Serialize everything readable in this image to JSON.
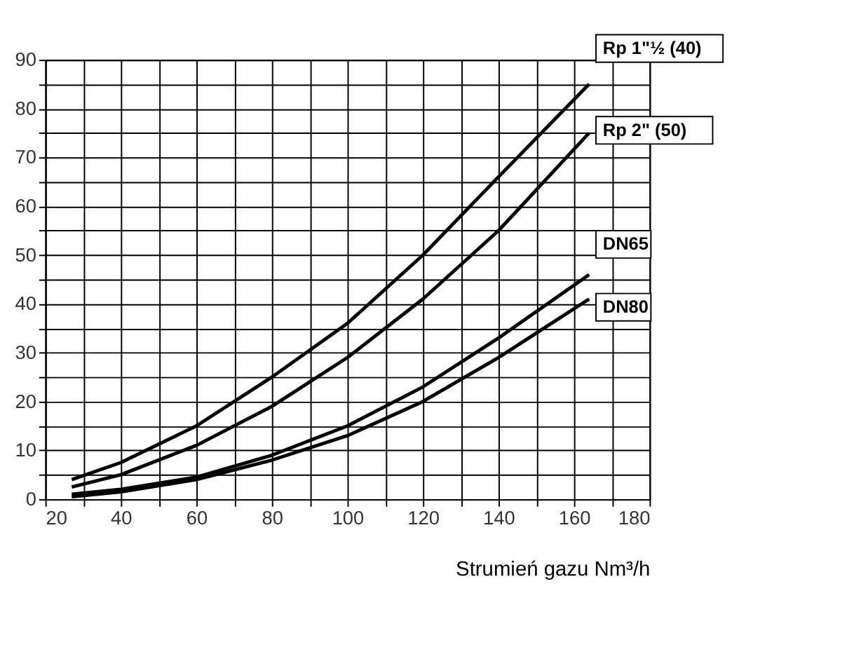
{
  "chart_data": {
    "type": "line",
    "xlabel": "Strumień gazu Nm³/h",
    "xlim": [
      20,
      180
    ],
    "ylim": [
      0,
      90
    ],
    "xticks": [
      20,
      {
        "value": 30,
        "label": null
      },
      40,
      {
        "value": 50,
        "label": null
      },
      60,
      {
        "value": 70,
        "label": null
      },
      80,
      {
        "value": 90,
        "label": null
      },
      100,
      {
        "value": 110,
        "label": null
      },
      120,
      {
        "value": 130,
        "label": null
      },
      140,
      {
        "value": 150,
        "label": null
      },
      160,
      {
        "value": 170,
        "label": null
      },
      180
    ],
    "yticks": [
      0,
      {
        "value": 5,
        "label": null
      },
      10,
      {
        "value": 15,
        "label": null
      },
      20,
      {
        "value": 25,
        "label": null
      },
      30,
      {
        "value": 35,
        "label": null
      },
      40,
      {
        "value": 45,
        "label": null
      },
      50,
      {
        "value": 55,
        "label": null
      },
      60,
      {
        "value": 65,
        "label": null
      },
      70,
      {
        "value": 75,
        "label": null
      },
      80,
      {
        "value": 85,
        "label": null
      },
      90
    ],
    "x": [
      27,
      40,
      60,
      80,
      100,
      120,
      140,
      164
    ],
    "grid": true,
    "legend": false,
    "marker": "none",
    "line_style": "solid",
    "series": [
      {
        "name": "Rp 1\"½ (40)",
        "color": "#000000",
        "values": [
          4,
          7.5,
          15,
          25,
          36,
          50,
          66,
          85
        ]
      },
      {
        "name": "Rp 2\" (50)",
        "color": "#000000",
        "values": [
          2.5,
          5,
          11,
          19,
          29,
          41,
          55,
          75
        ]
      },
      {
        "name": "DN65",
        "color": "#000000",
        "values": [
          1,
          2,
          4.5,
          9,
          15,
          23,
          33,
          46
        ]
      },
      {
        "name": "DN80",
        "color": "#000000",
        "values": [
          0.5,
          1.5,
          4,
          8,
          13,
          20,
          29,
          41
        ]
      }
    ]
  }
}
